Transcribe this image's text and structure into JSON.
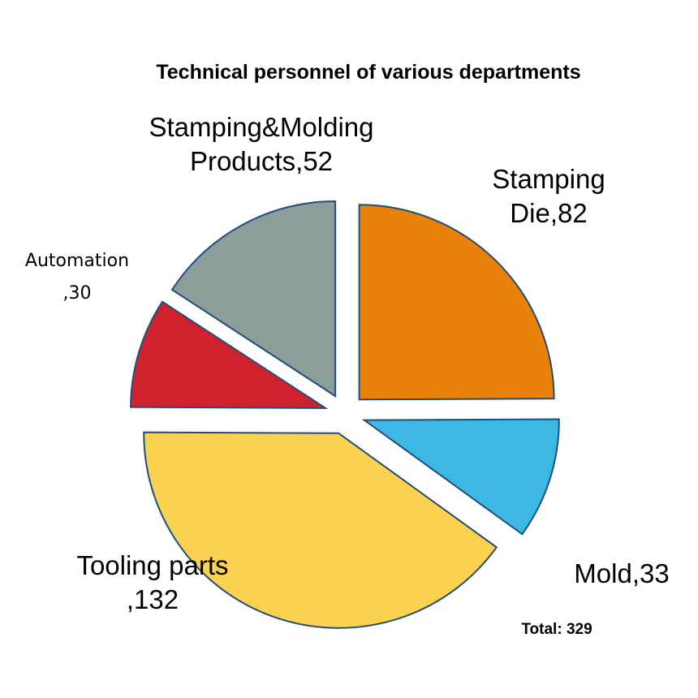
{
  "chart_data": {
    "type": "pie",
    "title": "Technical personnel of various departments",
    "total_label": "Total: 329",
    "slices": [
      {
        "name": "Stamping Die",
        "value": 82,
        "color": "#E8820A",
        "label_lines": [
          "Stamping",
          "Die,82"
        ]
      },
      {
        "name": "Mold",
        "value": 33,
        "color": "#3DB7E4",
        "label_lines": [
          "Mold,33"
        ]
      },
      {
        "name": "Tooling parts",
        "value": 132,
        "color": "#FBD150",
        "label_lines": [
          "Tooling parts",
          ",132"
        ]
      },
      {
        "name": "Automation",
        "value": 30,
        "color": "#D0222E",
        "label_lines": [
          "Automation",
          ",30"
        ]
      },
      {
        "name": "Stamping&Molding Products",
        "value": 52,
        "color": "#8B9E9A",
        "label_lines": [
          "Stamping&Molding",
          "Products,52"
        ]
      }
    ],
    "start_angle": "12 o'clock",
    "direction": "clockwise",
    "exploded": true,
    "edge_color": "#1F4E79"
  }
}
